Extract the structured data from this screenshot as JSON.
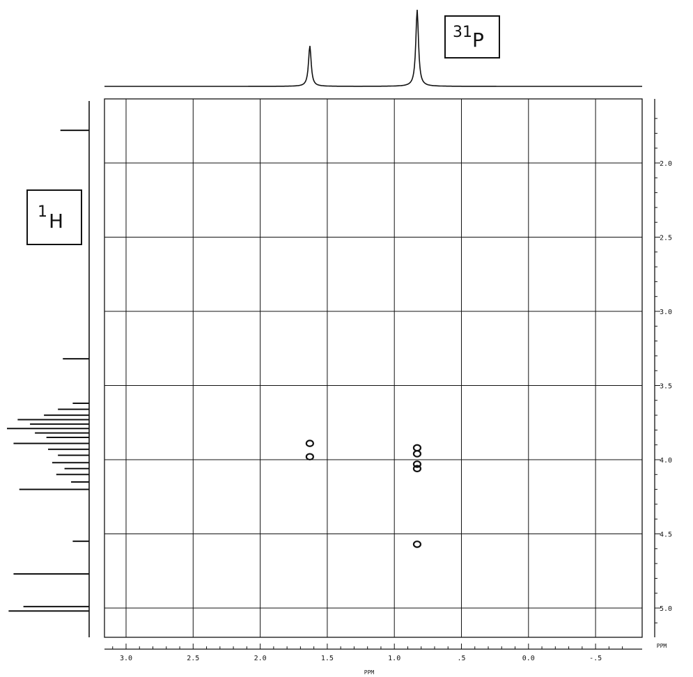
{
  "chart_data": {
    "type": "heatmap",
    "subtype": "2D NMR correlation (1H-31P)",
    "x_axis": {
      "label": "PPM",
      "nucleus_box": {
        "mass": "31",
        "symbol": "P"
      },
      "range": [
        3.15,
        -0.78
      ],
      "reversed": true,
      "ticks": [
        3.0,
        2.5,
        2.0,
        1.5,
        1.0,
        0.5,
        0.0,
        -0.5
      ],
      "tick_labels": [
        "3.0",
        "2.5",
        "2.0",
        "1.5",
        "1.0",
        ".5",
        "0.0",
        "-.5"
      ]
    },
    "y_axis": {
      "label": "PPM",
      "nucleus_box": {
        "mass": "1",
        "symbol": "H"
      },
      "range": [
        1.58,
        5.22
      ],
      "ticks": [
        2.0,
        2.5,
        3.0,
        3.5,
        4.0,
        4.5,
        5.0
      ],
      "tick_labels": [
        "2.0",
        "2.5",
        "3.0",
        "3.5",
        "4.0",
        "4.5",
        "5.0"
      ]
    },
    "grid": true,
    "cross_peaks": [
      {
        "p": 1.63,
        "h": 3.89
      },
      {
        "p": 1.63,
        "h": 3.98
      },
      {
        "p": 0.83,
        "h": 3.92
      },
      {
        "p": 0.83,
        "h": 3.96
      },
      {
        "p": 0.83,
        "h": 4.03
      },
      {
        "p": 0.83,
        "h": 4.06
      },
      {
        "p": 0.83,
        "h": 4.57
      }
    ],
    "top_projection_peaks": [
      {
        "ppm": 1.63,
        "intensity": 0.53
      },
      {
        "ppm": 0.83,
        "intensity": 1.0
      }
    ],
    "left_projection_peaks": [
      {
        "ppm": 1.78,
        "intensity": 0.35
      },
      {
        "ppm": 3.32,
        "intensity": 0.32
      },
      {
        "ppm": 3.62,
        "intensity": 0.2
      },
      {
        "ppm": 3.66,
        "intensity": 0.38
      },
      {
        "ppm": 3.7,
        "intensity": 0.55
      },
      {
        "ppm": 3.73,
        "intensity": 0.87
      },
      {
        "ppm": 3.76,
        "intensity": 0.72
      },
      {
        "ppm": 3.79,
        "intensity": 1.0
      },
      {
        "ppm": 3.82,
        "intensity": 0.66
      },
      {
        "ppm": 3.85,
        "intensity": 0.52
      },
      {
        "ppm": 3.89,
        "intensity": 0.92
      },
      {
        "ppm": 3.93,
        "intensity": 0.5
      },
      {
        "ppm": 3.97,
        "intensity": 0.38
      },
      {
        "ppm": 4.02,
        "intensity": 0.45
      },
      {
        "ppm": 4.06,
        "intensity": 0.3
      },
      {
        "ppm": 4.1,
        "intensity": 0.4
      },
      {
        "ppm": 4.15,
        "intensity": 0.22
      },
      {
        "ppm": 4.2,
        "intensity": 0.85
      },
      {
        "ppm": 4.55,
        "intensity": 0.2
      },
      {
        "ppm": 4.77,
        "intensity": 0.92
      },
      {
        "ppm": 4.99,
        "intensity": 0.8
      },
      {
        "ppm": 5.02,
        "intensity": 0.98
      }
    ]
  }
}
